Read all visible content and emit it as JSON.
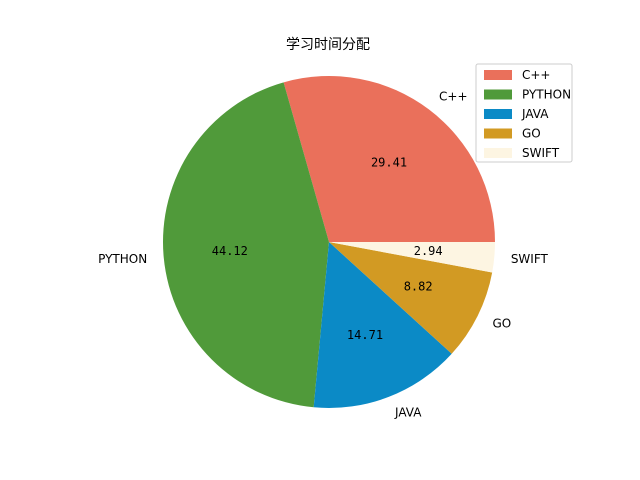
{
  "chart_data": {
    "type": "pie",
    "title": "学习时间分配",
    "categories": [
      "C++",
      "PYTHON",
      "JAVA",
      "GO",
      "SWIFT"
    ],
    "values": [
      29.41,
      44.12,
      14.71,
      8.82,
      2.94
    ],
    "percent_labels": [
      "29.41",
      "44.12",
      "14.71",
      "8.82",
      "2.94"
    ],
    "colors": [
      "#ea705b",
      "#509a3a",
      "#0b8ac6",
      "#d29a23",
      "#fdf5e2"
    ],
    "start_angle_deg": 0,
    "direction": "counterclockwise",
    "legend": {
      "placement": "top-right",
      "entries": [
        "C++",
        "PYTHON",
        "JAVA",
        "GO",
        "SWIFT"
      ]
    }
  }
}
